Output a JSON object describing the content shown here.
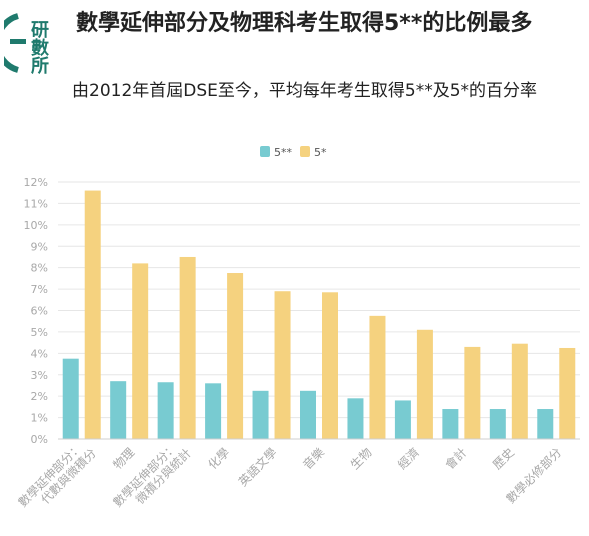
{
  "header": {
    "logo_text": "研數所",
    "title": "數學延伸部分及物理科考生取得5**的比例最多",
    "subtitle": "由2012年首屆DSE至今，平均每年考生取得5**及5*的百分率"
  },
  "colors": {
    "series_5ss": "#78cbd1",
    "series_5s": "#f5d27f",
    "logo": "#1f7a6d",
    "grid": "#e6e6e6",
    "tick": "#a8a8a8"
  },
  "chart_data": {
    "type": "bar",
    "categories": [
      "數學延伸部分：代數與微積分",
      "物理",
      "數學延伸部分：微積分與統計",
      "化學",
      "英語文學",
      "音樂",
      "生物",
      "經濟",
      "會計",
      "歷史",
      "數學必修部分"
    ],
    "series": [
      {
        "name": "5**",
        "values": [
          3.75,
          2.7,
          2.65,
          2.6,
          2.25,
          2.25,
          1.9,
          1.8,
          1.4,
          1.4,
          1.4
        ]
      },
      {
        "name": "5*",
        "values": [
          11.6,
          8.2,
          8.5,
          7.75,
          6.9,
          6.85,
          5.75,
          5.1,
          4.3,
          4.45,
          4.25
        ]
      }
    ],
    "yticks": [
      "0%",
      "1%",
      "2%",
      "3%",
      "4%",
      "5%",
      "6%",
      "7%",
      "8%",
      "9%",
      "10%",
      "11%",
      "12%"
    ],
    "ylim": [
      0,
      12
    ],
    "grid": true,
    "legend": "top-center"
  }
}
